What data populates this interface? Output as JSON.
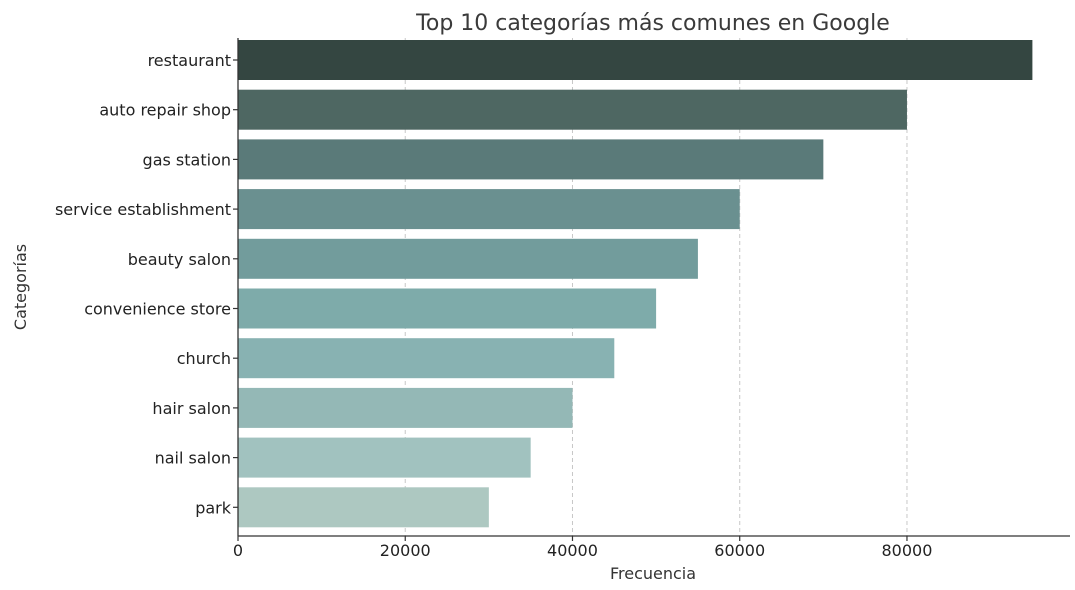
{
  "chart_data": {
    "type": "bar",
    "orientation": "horizontal",
    "title": "Top 10 categorías más comunes en Google",
    "xlabel": "Frecuencia",
    "ylabel": "Categorías",
    "categories": [
      "restaurant",
      "auto repair shop",
      "gas station",
      "service establishment",
      "beauty salon",
      "convenience store",
      "church",
      "hair salon",
      "nail salon",
      "park"
    ],
    "values": [
      95000,
      80000,
      70000,
      60000,
      55000,
      50000,
      45000,
      40000,
      35000,
      30000
    ],
    "xlim": [
      0,
      100000
    ],
    "xticks": [
      0,
      20000,
      40000,
      60000,
      80000
    ],
    "xtick_labels": [
      "0",
      "20000",
      "40000",
      "60000",
      "80000"
    ],
    "grid": "vertical dashed",
    "colors": [
      "#344641",
      "#4e6762",
      "#5a7a79",
      "#6a9090",
      "#729c9c",
      "#7eabaa",
      "#88b2b2",
      "#94b8b6",
      "#a1c2bf",
      "#adc8c1"
    ]
  }
}
